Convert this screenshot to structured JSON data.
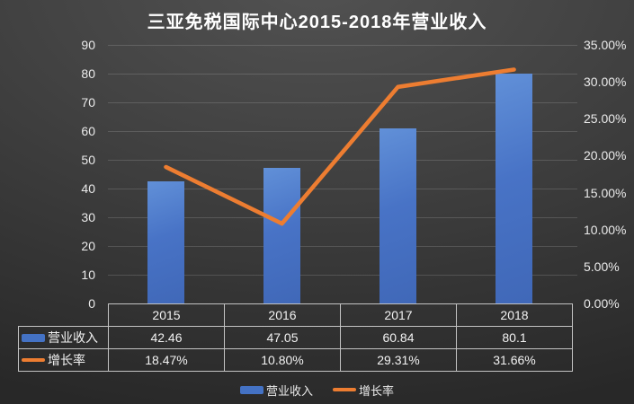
{
  "title": "三亚免税国际中心2015-2018年营业收入",
  "chart_data": {
    "type": "combo",
    "categories": [
      "2015",
      "2016",
      "2017",
      "2018"
    ],
    "series": [
      {
        "name": "营业收入",
        "type": "bar",
        "axis": "left",
        "values": [
          42.46,
          47.05,
          60.84,
          80.1
        ],
        "labels": [
          "42.46",
          "47.05",
          "60.84",
          "80.1"
        ],
        "color": "#4472C4"
      },
      {
        "name": "增长率",
        "type": "line",
        "axis": "right",
        "values": [
          18.47,
          10.8,
          29.31,
          31.66
        ],
        "labels": [
          "18.47%",
          "10.80%",
          "29.31%",
          "31.66%"
        ],
        "color": "#ED7D31"
      }
    ],
    "left_axis": {
      "min": 0,
      "max": 90,
      "step": 10,
      "ticks": [
        "0",
        "10",
        "20",
        "30",
        "40",
        "50",
        "60",
        "70",
        "80",
        "90"
      ]
    },
    "right_axis": {
      "min": 0,
      "max": 35,
      "step": 5,
      "ticks": [
        "0.00%",
        "5.00%",
        "10.00%",
        "15.00%",
        "20.00%",
        "25.00%",
        "30.00%",
        "35.00%"
      ]
    },
    "legend": {
      "position": "bottom",
      "items": [
        "营业收入",
        "增长率"
      ]
    },
    "grid": true
  },
  "data_table": {
    "header_row": [
      "2015",
      "2016",
      "2017",
      "2018"
    ],
    "rows": [
      {
        "label": "营业收入",
        "swatch": "bar",
        "values": [
          "42.46",
          "47.05",
          "60.84",
          "80.1"
        ]
      },
      {
        "label": "增长率",
        "swatch": "line",
        "values": [
          "18.47%",
          "10.80%",
          "29.31%",
          "31.66%"
        ]
      }
    ]
  },
  "colors": {
    "bar": "#4472C4",
    "line": "#ED7D31",
    "background_top": "#4a4a4a",
    "background_bottom": "#282828",
    "gridline": "rgba(255,255,255,0.15)",
    "table_border": "#c3c3c3",
    "text": "#f2f2f2"
  }
}
